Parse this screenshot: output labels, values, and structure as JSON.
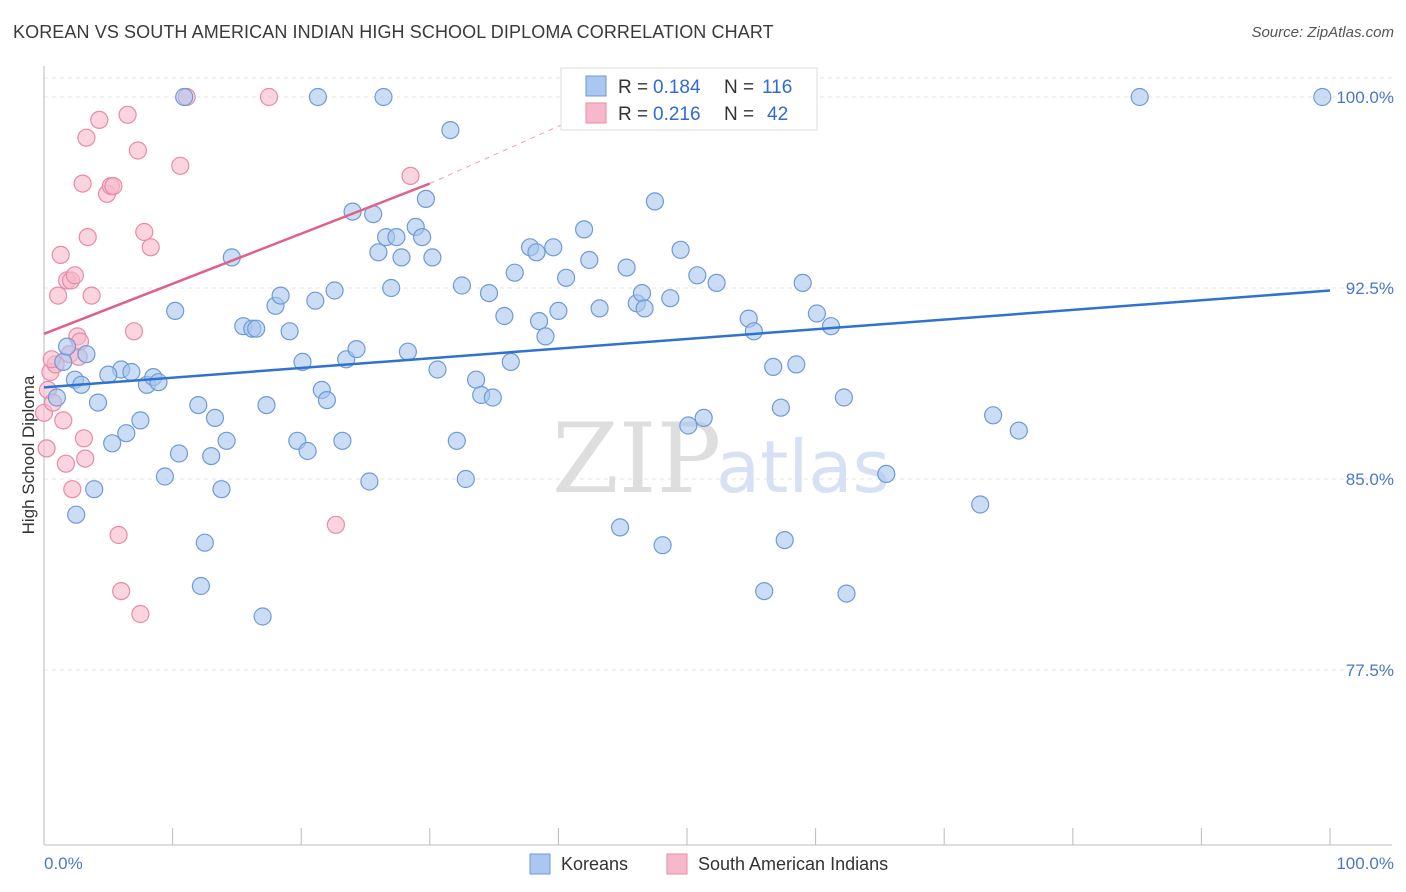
{
  "title": "KOREAN VS SOUTH AMERICAN INDIAN HIGH SCHOOL DIPLOMA CORRELATION CHART",
  "source": "Source: ZipAtlas.com",
  "watermark": {
    "zip": "ZIP",
    "atlas": "atlas"
  },
  "colors": {
    "korean_fill": "#a9c7ef",
    "korean_stroke": "#6f9ad8",
    "korean_line": "#2f72d0",
    "sai_fill": "#f6b9cb",
    "sai_stroke": "#e98aa6",
    "sai_line": "#e0608a",
    "axis_text": "#4a78c8",
    "grid": "#e3e3e3"
  },
  "legend": {
    "rows": [
      {
        "r_label": "R =",
        "r_value": "0.184",
        "n_label": "N =",
        "n_value": "116"
      },
      {
        "r_label": "R =",
        "r_value": "0.216",
        "n_label": "N =",
        "n_value": "42"
      }
    ]
  },
  "chart_data": {
    "type": "scatter",
    "title": "KOREAN VS SOUTH AMERICAN INDIAN HIGH SCHOOL DIPLOMA CORRELATION CHART",
    "xlabel": "",
    "ylabel": "High School Diploma",
    "xlim": [
      0,
      100
    ],
    "ylim": [
      70.5,
      101.5
    ],
    "x_tick_labels": [
      "0.0%",
      "100.0%"
    ],
    "y_ticks": [
      77.5,
      85.0,
      92.5,
      100.0
    ],
    "y_tick_labels": [
      "77.5%",
      "85.0%",
      "92.5%",
      "100.0%"
    ],
    "grid": true,
    "legend_position": "top-center",
    "series": [
      {
        "name": "Koreans",
        "r": 0.184,
        "n": 116,
        "trend": {
          "x0": 0,
          "y0": 88.6,
          "x1": 100,
          "y1": 92.4
        },
        "points": [
          [
            1.5,
            89.6
          ],
          [
            1.8,
            90.2
          ],
          [
            3.3,
            89.9
          ],
          [
            2.4,
            88.9
          ],
          [
            2.9,
            88.7
          ],
          [
            4.2,
            88.0
          ],
          [
            3.9,
            84.6
          ],
          [
            5.3,
            86.4
          ],
          [
            6.0,
            89.3
          ],
          [
            5.0,
            89.1
          ],
          [
            7.5,
            87.3
          ],
          [
            6.4,
            86.8
          ],
          [
            8.0,
            88.7
          ],
          [
            8.5,
            89.0
          ],
          [
            8.9,
            88.8
          ],
          [
            10.2,
            91.6
          ],
          [
            9.4,
            85.1
          ],
          [
            10.5,
            86.0
          ],
          [
            12.0,
            87.9
          ],
          [
            12.5,
            82.5
          ],
          [
            12.2,
            80.8
          ],
          [
            13.0,
            85.9
          ],
          [
            13.3,
            87.4
          ],
          [
            13.8,
            84.6
          ],
          [
            14.2,
            86.5
          ],
          [
            14.6,
            93.7
          ],
          [
            15.5,
            91.0
          ],
          [
            16.2,
            90.9
          ],
          [
            16.5,
            90.9
          ],
          [
            17.0,
            79.6
          ],
          [
            17.3,
            87.9
          ],
          [
            18.0,
            91.8
          ],
          [
            18.4,
            92.2
          ],
          [
            19.1,
            90.8
          ],
          [
            19.7,
            86.5
          ],
          [
            20.1,
            89.6
          ],
          [
            20.5,
            86.1
          ],
          [
            21.1,
            92.0
          ],
          [
            21.6,
            88.5
          ],
          [
            22.0,
            88.1
          ],
          [
            22.6,
            92.4
          ],
          [
            23.2,
            86.5
          ],
          [
            23.5,
            89.7
          ],
          [
            24.3,
            90.1
          ],
          [
            24.0,
            95.5
          ],
          [
            25.3,
            84.9
          ],
          [
            25.6,
            95.4
          ],
          [
            26.0,
            93.9
          ],
          [
            26.6,
            94.5
          ],
          [
            27.0,
            92.5
          ],
          [
            27.4,
            94.5
          ],
          [
            27.8,
            93.7
          ],
          [
            28.3,
            90.0
          ],
          [
            28.9,
            94.9
          ],
          [
            29.4,
            94.5
          ],
          [
            29.7,
            96.0
          ],
          [
            30.2,
            93.7
          ],
          [
            30.6,
            89.3
          ],
          [
            31.6,
            98.7
          ],
          [
            32.1,
            86.5
          ],
          [
            32.5,
            92.6
          ],
          [
            32.8,
            85.0
          ],
          [
            33.6,
            88.9
          ],
          [
            34.0,
            88.3
          ],
          [
            34.6,
            92.3
          ],
          [
            34.9,
            88.2
          ],
          [
            35.8,
            91.4
          ],
          [
            36.3,
            89.6
          ],
          [
            36.6,
            93.1
          ],
          [
            37.8,
            94.1
          ],
          [
            38.3,
            93.9
          ],
          [
            38.5,
            91.2
          ],
          [
            39.0,
            90.6
          ],
          [
            39.6,
            94.1
          ],
          [
            40.0,
            91.6
          ],
          [
            40.6,
            92.9
          ],
          [
            42.0,
            94.8
          ],
          [
            42.4,
            93.6
          ],
          [
            43.2,
            91.7
          ],
          [
            44.8,
            83.1
          ],
          [
            45.3,
            93.3
          ],
          [
            46.1,
            91.9
          ],
          [
            46.5,
            92.3
          ],
          [
            46.7,
            91.7
          ],
          [
            47.5,
            95.9
          ],
          [
            48.1,
            82.4
          ],
          [
            48.7,
            92.1
          ],
          [
            49.5,
            94.0
          ],
          [
            50.1,
            87.1
          ],
          [
            50.8,
            93.0
          ],
          [
            51.3,
            87.4
          ],
          [
            52.3,
            92.7
          ],
          [
            54.8,
            91.3
          ],
          [
            55.2,
            90.8
          ],
          [
            56.0,
            80.6
          ],
          [
            56.7,
            89.4
          ],
          [
            57.3,
            87.8
          ],
          [
            57.6,
            82.6
          ],
          [
            58.5,
            89.5
          ],
          [
            59.0,
            92.7
          ],
          [
            60.1,
            91.5
          ],
          [
            61.2,
            91.0
          ],
          [
            62.2,
            88.2
          ],
          [
            62.4,
            80.5
          ],
          [
            65.5,
            85.2
          ],
          [
            72.8,
            84.0
          ],
          [
            73.8,
            87.5
          ],
          [
            75.8,
            86.9
          ],
          [
            85.2,
            100.0
          ],
          [
            99.4,
            100.0
          ],
          [
            10.9,
            100.0
          ],
          [
            21.3,
            100.0
          ],
          [
            26.4,
            100.0
          ],
          [
            2.5,
            83.6
          ],
          [
            1.0,
            88.2
          ],
          [
            6.8,
            89.2
          ]
        ]
      },
      {
        "name": "South American Indians",
        "r": 0.216,
        "n": 42,
        "trend": {
          "x0": 0,
          "y0": 90.7,
          "x1": 30,
          "y1": 96.6,
          "dash_to": {
            "x": 42,
            "y": 99.3
          }
        },
        "points": [
          [
            0.0,
            87.6
          ],
          [
            0.3,
            88.5
          ],
          [
            0.5,
            89.2
          ],
          [
            0.7,
            88.0
          ],
          [
            0.9,
            89.5
          ],
          [
            1.1,
            92.2
          ],
          [
            1.3,
            93.8
          ],
          [
            1.5,
            87.3
          ],
          [
            1.7,
            85.6
          ],
          [
            1.8,
            92.8
          ],
          [
            2.0,
            89.9
          ],
          [
            2.1,
            92.8
          ],
          [
            2.2,
            84.6
          ],
          [
            2.4,
            93.0
          ],
          [
            2.6,
            90.6
          ],
          [
            2.7,
            89.8
          ],
          [
            2.8,
            90.4
          ],
          [
            3.0,
            96.6
          ],
          [
            3.1,
            86.6
          ],
          [
            3.2,
            85.8
          ],
          [
            3.3,
            98.4
          ],
          [
            3.4,
            94.5
          ],
          [
            3.7,
            92.2
          ],
          [
            4.3,
            99.1
          ],
          [
            4.9,
            96.2
          ],
          [
            5.2,
            96.5
          ],
          [
            5.4,
            96.5
          ],
          [
            5.8,
            82.8
          ],
          [
            6.0,
            80.6
          ],
          [
            6.5,
            99.3
          ],
          [
            7.0,
            90.8
          ],
          [
            7.3,
            97.9
          ],
          [
            7.5,
            79.7
          ],
          [
            7.8,
            94.7
          ],
          [
            8.3,
            94.1
          ],
          [
            10.6,
            97.3
          ],
          [
            11.1,
            100.0
          ],
          [
            17.5,
            100.0
          ],
          [
            22.7,
            83.2
          ],
          [
            28.5,
            96.9
          ],
          [
            0.2,
            86.2
          ],
          [
            0.6,
            89.7
          ]
        ]
      }
    ]
  }
}
